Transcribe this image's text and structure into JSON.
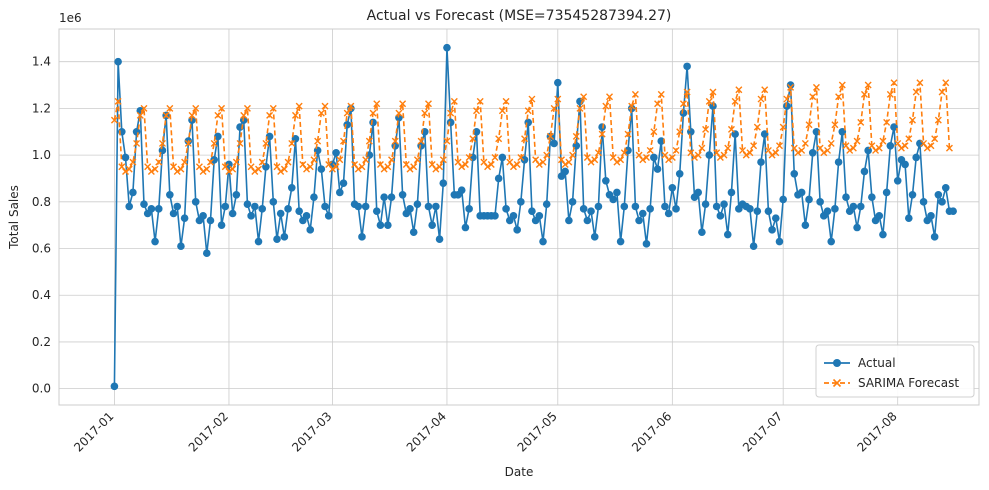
{
  "chart_data": {
    "type": "line",
    "title": "Actual vs Forecast (MSE=73545287394.27)",
    "xlabel": "Date",
    "ylabel": "Total Sales",
    "y_scale_label": "1e6",
    "xlim": [
      "2016-12-17",
      "2017-08-23"
    ],
    "ylim": [
      -0.07,
      1.54
    ],
    "y_ticks": [
      0.0,
      0.2,
      0.4,
      0.6,
      0.8,
      1.0,
      1.2,
      1.4
    ],
    "y_tick_labels": [
      "0.0",
      "0.2",
      "0.4",
      "0.6",
      "0.8",
      "1.0",
      "1.2",
      "1.4"
    ],
    "x_ticks": [
      "2017-01-01",
      "2017-02-01",
      "2017-03-01",
      "2017-04-01",
      "2017-05-01",
      "2017-06-01",
      "2017-07-01",
      "2017-08-01"
    ],
    "x_tick_labels": [
      "2017-01",
      "2017-02",
      "2017-03",
      "2017-04",
      "2017-05",
      "2017-06",
      "2017-07",
      "2017-08"
    ],
    "grid": true,
    "legend_position": "bottom-right",
    "start_date": "2017-01-01",
    "weekly_pattern": "weekend peaks",
    "series": [
      {
        "name": "Actual",
        "color": "#1f77b4",
        "marker": "circle",
        "line_style": "solid",
        "base_weekday": [
          0.74,
          0.7,
          0.72,
          0.78,
          0.92,
          1.08,
          1.14
        ],
        "values_note": "daily values, million units",
        "values": [
          0.01,
          1.4,
          1.1,
          0.99,
          0.78,
          0.84,
          1.1,
          1.19,
          0.79,
          0.75,
          0.77,
          0.63,
          0.77,
          1.02,
          1.17,
          0.83,
          0.75,
          0.78,
          0.61,
          0.73,
          1.06,
          1.15,
          0.8,
          0.72,
          0.74,
          0.58,
          0.72,
          0.98,
          1.08,
          0.7,
          0.78,
          0.96,
          0.75,
          0.83,
          1.12,
          1.15,
          0.79,
          0.74,
          0.78,
          0.63,
          0.77,
          0.95,
          1.08,
          0.8,
          0.64,
          0.75,
          0.65,
          0.77,
          0.86,
          1.07,
          0.76,
          0.72,
          0.74,
          0.68,
          0.82,
          1.02,
          0.94,
          0.78,
          0.74,
          0.96,
          1.01,
          0.84,
          0.88,
          1.13,
          1.2,
          0.79,
          0.78,
          0.65,
          0.78,
          1.0,
          1.14,
          0.76,
          0.7,
          0.82,
          0.7,
          0.82,
          1.04,
          1.16,
          0.83,
          0.75,
          0.77,
          0.67,
          0.79,
          1.04,
          1.1,
          0.78,
          0.7,
          0.78,
          0.64,
          0.88,
          1.46,
          1.14,
          0.83,
          0.83,
          0.85,
          0.69,
          0.77,
          0.99,
          1.1,
          0.74,
          0.74,
          0.74,
          0.74,
          0.74,
          0.9,
          0.99,
          0.77,
          0.72,
          0.74,
          0.68,
          0.8,
          0.98,
          1.14,
          0.76,
          0.72,
          0.74,
          0.63,
          0.79,
          1.08,
          1.05,
          1.31,
          0.91,
          0.93,
          0.72,
          0.8,
          1.04,
          1.23,
          0.77,
          0.72,
          0.76,
          0.65,
          0.78,
          1.12,
          0.89,
          0.83,
          0.81,
          0.84,
          0.63,
          0.78,
          1.02,
          1.2,
          0.78,
          0.72,
          0.75,
          0.62,
          0.77,
          0.99,
          0.94,
          1.06,
          0.78,
          0.75,
          0.86,
          0.77,
          0.92,
          1.18,
          1.38,
          1.1,
          0.82,
          0.84,
          0.67,
          0.79,
          1.0,
          1.21,
          0.78,
          0.74,
          0.79,
          0.66,
          0.84,
          1.09,
          0.77,
          0.79,
          0.78,
          0.77,
          0.61,
          0.76,
          0.97,
          1.09,
          0.76,
          0.68,
          0.73,
          0.63,
          0.81,
          1.21,
          1.3,
          0.92,
          0.83,
          0.84,
          0.7,
          0.81,
          1.01,
          1.1,
          0.8,
          0.74,
          0.76,
          0.63,
          0.77,
          0.97,
          1.1,
          0.82,
          0.76,
          0.78,
          0.69,
          0.78,
          0.93,
          1.02,
          0.82,
          0.72,
          0.74,
          0.66,
          0.84,
          1.04,
          1.12,
          0.89,
          0.98,
          0.96,
          0.73,
          0.83,
          0.99,
          1.05,
          0.8,
          0.72,
          0.74,
          0.65,
          0.83,
          0.8,
          0.86,
          0.76,
          0.76
        ]
      },
      {
        "name": "SARIMA Forecast",
        "color": "#ff7f0e",
        "marker": "x",
        "line_style": "dashed",
        "base_weekday": [
          0.94,
          0.92,
          0.93,
          0.96,
          1.04,
          1.16,
          1.19
        ],
        "values_note": "daily values, million units; rising trend +0.0005/day",
        "values": [
          1.15,
          1.23,
          0.95,
          0.93,
          0.94,
          0.97,
          1.05,
          1.17,
          1.2,
          0.95,
          0.93,
          0.94,
          0.97,
          1.05,
          1.17,
          1.2,
          0.95,
          0.93,
          0.94,
          0.97,
          1.05,
          1.17,
          1.2,
          0.95,
          0.93,
          0.94,
          0.97,
          1.05,
          1.17,
          1.2,
          0.95,
          0.93,
          0.94,
          0.97,
          1.05,
          1.17,
          1.2,
          0.95,
          0.93,
          0.94,
          0.97,
          1.05,
          1.17,
          1.2,
          0.95,
          0.93,
          0.94,
          0.97,
          1.05,
          1.17,
          1.21,
          0.96,
          0.94,
          0.95,
          0.98,
          1.06,
          1.18,
          1.21,
          0.96,
          0.94,
          0.95,
          0.98,
          1.06,
          1.18,
          1.21,
          0.96,
          0.94,
          0.95,
          0.98,
          1.06,
          1.18,
          1.22,
          0.96,
          0.94,
          0.95,
          0.98,
          1.06,
          1.18,
          1.22,
          0.96,
          0.94,
          0.95,
          0.98,
          1.06,
          1.18,
          1.22,
          0.96,
          0.94,
          0.95,
          0.98,
          1.06,
          1.18,
          1.23,
          0.97,
          0.95,
          0.96,
          0.99,
          1.07,
          1.19,
          1.23,
          0.97,
          0.95,
          0.96,
          0.99,
          1.07,
          1.19,
          1.23,
          0.97,
          0.95,
          0.96,
          0.99,
          1.07,
          1.19,
          1.24,
          0.98,
          0.96,
          0.97,
          1.0,
          1.08,
          1.2,
          1.24,
          0.98,
          0.96,
          0.97,
          1.0,
          1.08,
          1.2,
          1.25,
          0.99,
          0.97,
          0.98,
          1.01,
          1.09,
          1.21,
          1.25,
          0.99,
          0.97,
          0.98,
          1.01,
          1.09,
          1.21,
          1.26,
          1.0,
          0.98,
          0.99,
          1.02,
          1.1,
          1.22,
          1.26,
          1.0,
          0.98,
          0.99,
          1.02,
          1.1,
          1.22,
          1.27,
          1.01,
          0.99,
          1.0,
          1.03,
          1.11,
          1.23,
          1.27,
          1.01,
          0.99,
          1.0,
          1.03,
          1.11,
          1.23,
          1.28,
          1.02,
          1.0,
          1.01,
          1.04,
          1.12,
          1.24,
          1.28,
          1.02,
          1.0,
          1.01,
          1.04,
          1.12,
          1.24,
          1.29,
          1.03,
          1.01,
          1.02,
          1.05,
          1.13,
          1.25,
          1.29,
          1.03,
          1.01,
          1.02,
          1.05,
          1.13,
          1.25,
          1.3,
          1.04,
          1.02,
          1.03,
          1.06,
          1.14,
          1.26,
          1.3,
          1.04,
          1.02,
          1.03,
          1.06,
          1.14,
          1.26,
          1.31,
          1.05,
          1.03,
          1.04,
          1.07,
          1.15,
          1.27,
          1.31,
          1.05,
          1.03,
          1.04,
          1.07,
          1.15,
          1.27,
          1.31,
          1.03
        ]
      }
    ]
  }
}
